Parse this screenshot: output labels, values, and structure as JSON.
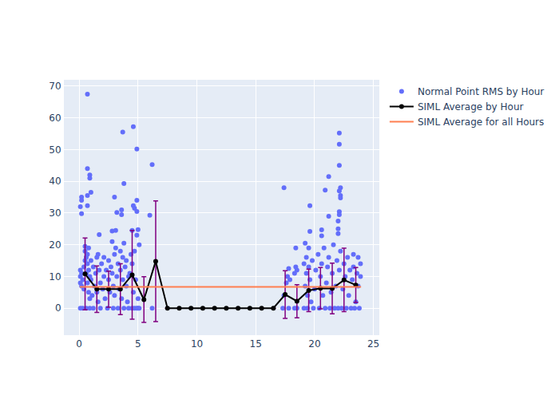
{
  "chart_data": {
    "type": "scatter",
    "xlim": [
      -1.3,
      25.5
    ],
    "ylim": [
      -8.5,
      72
    ],
    "xticks": [
      0,
      5,
      10,
      15,
      20,
      25
    ],
    "yticks": [
      0,
      10,
      20,
      30,
      40,
      50,
      60,
      70
    ],
    "grid": true,
    "legend": "upper right",
    "series": [
      {
        "name": "Normal Point RMS by Hour",
        "type": "scatter",
        "color": "#636efa",
        "marker": "circle",
        "x": [
          0.1,
          0.1,
          0.1,
          0.1,
          0.2,
          0.2,
          0.3,
          0.3,
          0.4,
          0.4,
          0.5,
          0.5,
          0.5,
          0.6,
          0.6,
          0.6,
          0.7,
          0.7,
          0.7,
          0.8,
          0.8,
          0.8,
          0.9,
          0.9,
          0.9,
          1.0,
          1.0,
          1.1,
          1.2,
          1.2,
          1.3,
          1.4,
          1.5,
          1.5,
          1.6,
          1.6,
          1.7,
          1.8,
          1.8,
          1.9,
          2.0,
          2.1,
          2.1,
          2.2,
          2.3,
          2.4,
          2.5,
          2.5,
          2.6,
          2.7,
          2.8,
          2.8,
          2.9,
          2.9,
          3.0,
          3.0,
          3.1,
          3.2,
          3.3,
          3.3,
          3.4,
          3.5,
          3.5,
          3.6,
          3.7,
          3.7,
          3.8,
          3.8,
          3.9,
          4.0,
          4.0,
          4.1,
          4.2,
          4.2,
          4.3,
          4.4,
          4.5,
          4.5,
          4.6,
          4.7,
          4.7,
          4.8,
          4.9,
          4.9,
          5.0,
          5.0,
          0.7,
          0.7,
          0.9,
          0.9,
          1.0,
          0.7,
          0.2,
          0.2,
          0.1,
          0.2,
          0.7,
          1.7,
          3.0,
          3.2,
          3.7,
          3.8,
          3.6,
          3.6,
          4.6,
          4.9,
          4.9,
          4.6,
          4.7,
          4.9,
          5.0,
          4.5,
          2.8,
          3.1,
          6.2,
          6.0,
          6.2,
          5.1,
          5.1,
          17.4,
          17.8,
          18.4,
          19.6,
          19.6,
          19.2,
          20.6,
          20.6,
          20.9,
          21.2,
          21.2,
          22.1,
          22.1,
          22.1,
          22.2,
          22.1,
          22.2,
          22.2,
          22.1,
          22.1,
          22.0,
          22.0,
          22.0,
          23.7,
          23.3,
          17.3,
          17.4,
          17.6,
          17.7,
          17.8,
          17.9,
          18.3,
          18.3,
          18.4,
          18.5,
          18.5,
          19.1,
          19.1,
          19.2,
          19.3,
          19.3,
          19.4,
          19.4,
          19.5,
          19.5,
          19.6,
          19.7,
          19.8,
          19.9,
          20.0,
          20.1,
          20.3,
          20.4,
          20.5,
          20.6,
          20.7,
          20.8,
          20.9,
          21.0,
          21.1,
          21.2,
          21.3,
          21.4,
          21.5,
          21.6,
          21.7,
          21.8,
          21.9,
          22.0,
          22.1,
          22.2,
          22.3,
          22.4,
          22.5,
          22.6,
          22.7,
          22.8,
          22.9,
          23.0,
          23.1,
          23.2,
          23.3,
          23.4,
          23.5,
          23.6,
          23.7,
          23.8,
          23.9,
          23.9
        ],
        "values": [
          0,
          8,
          10,
          12,
          7,
          11,
          9,
          0,
          13,
          6,
          15,
          19.5,
          18,
          16,
          11,
          0,
          17,
          14,
          8,
          19,
          12,
          5,
          10,
          3,
          0,
          15,
          9,
          4,
          13,
          0,
          7,
          11,
          16,
          5,
          17,
          2,
          12,
          8,
          0,
          14,
          6,
          10,
          16,
          3,
          12,
          0,
          9,
          15,
          5,
          13,
          11,
          21,
          7,
          0,
          17,
          4,
          19,
          10,
          14,
          0,
          6,
          12,
          18,
          3,
          16,
          9,
          20.5,
          0,
          13,
          7,
          15,
          2,
          10,
          0,
          11,
          17,
          0,
          14,
          5,
          18,
          0,
          9,
          0,
          23,
          3,
          0,
          67.5,
          44,
          41,
          42,
          36.5,
          35.5,
          35,
          34,
          32,
          29.8,
          32.3,
          23.2,
          35,
          30.2,
          55.5,
          39.3,
          31,
          29.5,
          57.2,
          50.2,
          34,
          32.3,
          31.5,
          30.5,
          24.8,
          24.5,
          24.3,
          24.5,
          45.3,
          29.3,
          0,
          20,
          0,
          38,
          12.5,
          19,
          32.3,
          24.2,
          20.5,
          24.7,
          22.8,
          37.2,
          41.5,
          29,
          55.2,
          51.7,
          45,
          38,
          37,
          35.5,
          34.8,
          30.4,
          29.5,
          27.5,
          25,
          23.5,
          16,
          17,
          0,
          4,
          8,
          10,
          0,
          9,
          0,
          11,
          13,
          0,
          12,
          0,
          14,
          7,
          16,
          11,
          0,
          4,
          13,
          19,
          9,
          2,
          15,
          0,
          6,
          12,
          17,
          0,
          10,
          14,
          4,
          19,
          0,
          8,
          13,
          16,
          0,
          5,
          11,
          20,
          0,
          7,
          15,
          0,
          12,
          18,
          0,
          6,
          14,
          10,
          0,
          16,
          4,
          12,
          0,
          9,
          13,
          0,
          2,
          11,
          7,
          0,
          14,
          10
        ]
      },
      {
        "name": "SIML Average by Hour",
        "type": "line",
        "color": "#000000",
        "marker": "circle",
        "x": [
          0.5,
          1.5,
          2.5,
          3.5,
          4.5,
          5.5,
          6.5,
          7.5,
          8.5,
          9.5,
          10.5,
          11.5,
          12.5,
          13.5,
          14.5,
          15.5,
          16.5,
          17.5,
          18.5,
          19.5,
          20.5,
          21.5,
          22.5,
          23.5
        ],
        "values": [
          10.8,
          6.0,
          6.0,
          6.0,
          10.5,
          2.7,
          14.8,
          0,
          0,
          0,
          0,
          0,
          0,
          0,
          0,
          0,
          0,
          4.3,
          2.2,
          5.6,
          6.3,
          6.2,
          8.9,
          7.3
        ],
        "error": [
          11.3,
          7.3,
          5.7,
          8.0,
          14.0,
          7.2,
          19.0,
          0,
          0,
          0,
          0,
          0,
          0,
          0,
          0,
          0,
          0,
          7.5,
          5.2,
          6.7,
          6.5,
          8.0,
          10.0,
          5.5
        ]
      },
      {
        "name": "SIML Average for all Hours",
        "type": "line",
        "color": "#ff7f50",
        "x": [
          0.05,
          23.95
        ],
        "values": [
          6.7,
          6.7
        ]
      }
    ]
  }
}
